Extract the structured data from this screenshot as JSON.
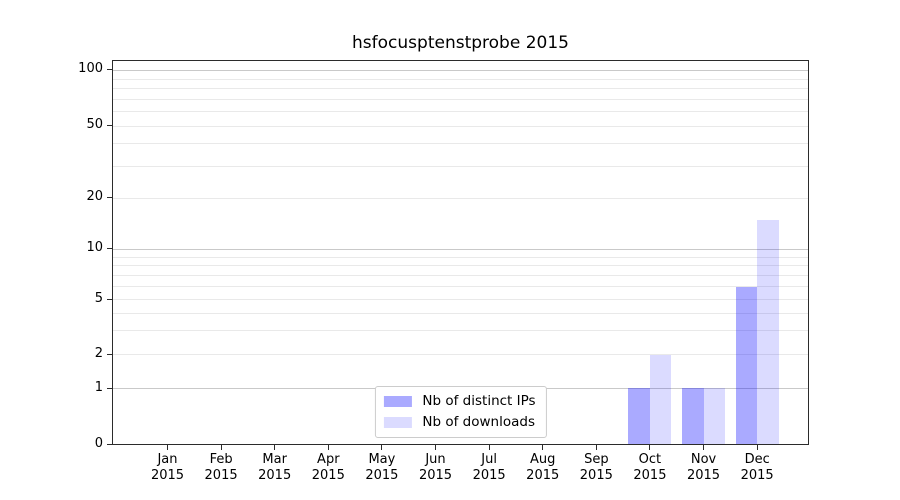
{
  "chart_data": {
    "type": "bar",
    "title": "hsfocusptenstprobe 2015",
    "categories": [
      {
        "month": "Jan",
        "year": "2015"
      },
      {
        "month": "Feb",
        "year": "2015"
      },
      {
        "month": "Mar",
        "year": "2015"
      },
      {
        "month": "Apr",
        "year": "2015"
      },
      {
        "month": "May",
        "year": "2015"
      },
      {
        "month": "Jun",
        "year": "2015"
      },
      {
        "month": "Jul",
        "year": "2015"
      },
      {
        "month": "Aug",
        "year": "2015"
      },
      {
        "month": "Sep",
        "year": "2015"
      },
      {
        "month": "Oct",
        "year": "2015"
      },
      {
        "month": "Nov",
        "year": "2015"
      },
      {
        "month": "Dec",
        "year": "2015"
      }
    ],
    "series": [
      {
        "key": "distinct-ips",
        "name": "Nb of distinct IPs",
        "color": "rgba(0,0,255,0.335)",
        "rendered_color": "#a9a9f8",
        "values": [
          0,
          0,
          0,
          0,
          0,
          0,
          0,
          0,
          0,
          1,
          1,
          6
        ]
      },
      {
        "key": "downloads",
        "name": "Nb of downloads",
        "color": "rgba(0,0,255,0.14)",
        "rendered_color": "#dbdbf9",
        "values": [
          0,
          0,
          0,
          0,
          0,
          0,
          0,
          0,
          0,
          2,
          1,
          15
        ]
      }
    ],
    "y_axis": {
      "scale": "log-with-zero",
      "tick_values": [
        0,
        1,
        2,
        5,
        10,
        20,
        50,
        100
      ],
      "tick_labels": [
        "0",
        "1",
        "2",
        "5",
        "10",
        "20",
        "50",
        "100"
      ],
      "major_gridlines": [
        1,
        10,
        100
      ],
      "minor_gridlines": [
        2,
        3,
        4,
        5,
        6,
        7,
        8,
        9,
        20,
        30,
        40,
        50,
        60,
        70,
        80,
        90
      ],
      "range_top_value": 110
    },
    "legend": {
      "position": "lower-center"
    },
    "grid": "horizontal-only",
    "colors": {
      "major_grid": "#c9c9c9",
      "minor_grid": "#e9e9e9",
      "spine": "#2b2b2b",
      "text": "#000000",
      "background": "#ffffff"
    }
  }
}
